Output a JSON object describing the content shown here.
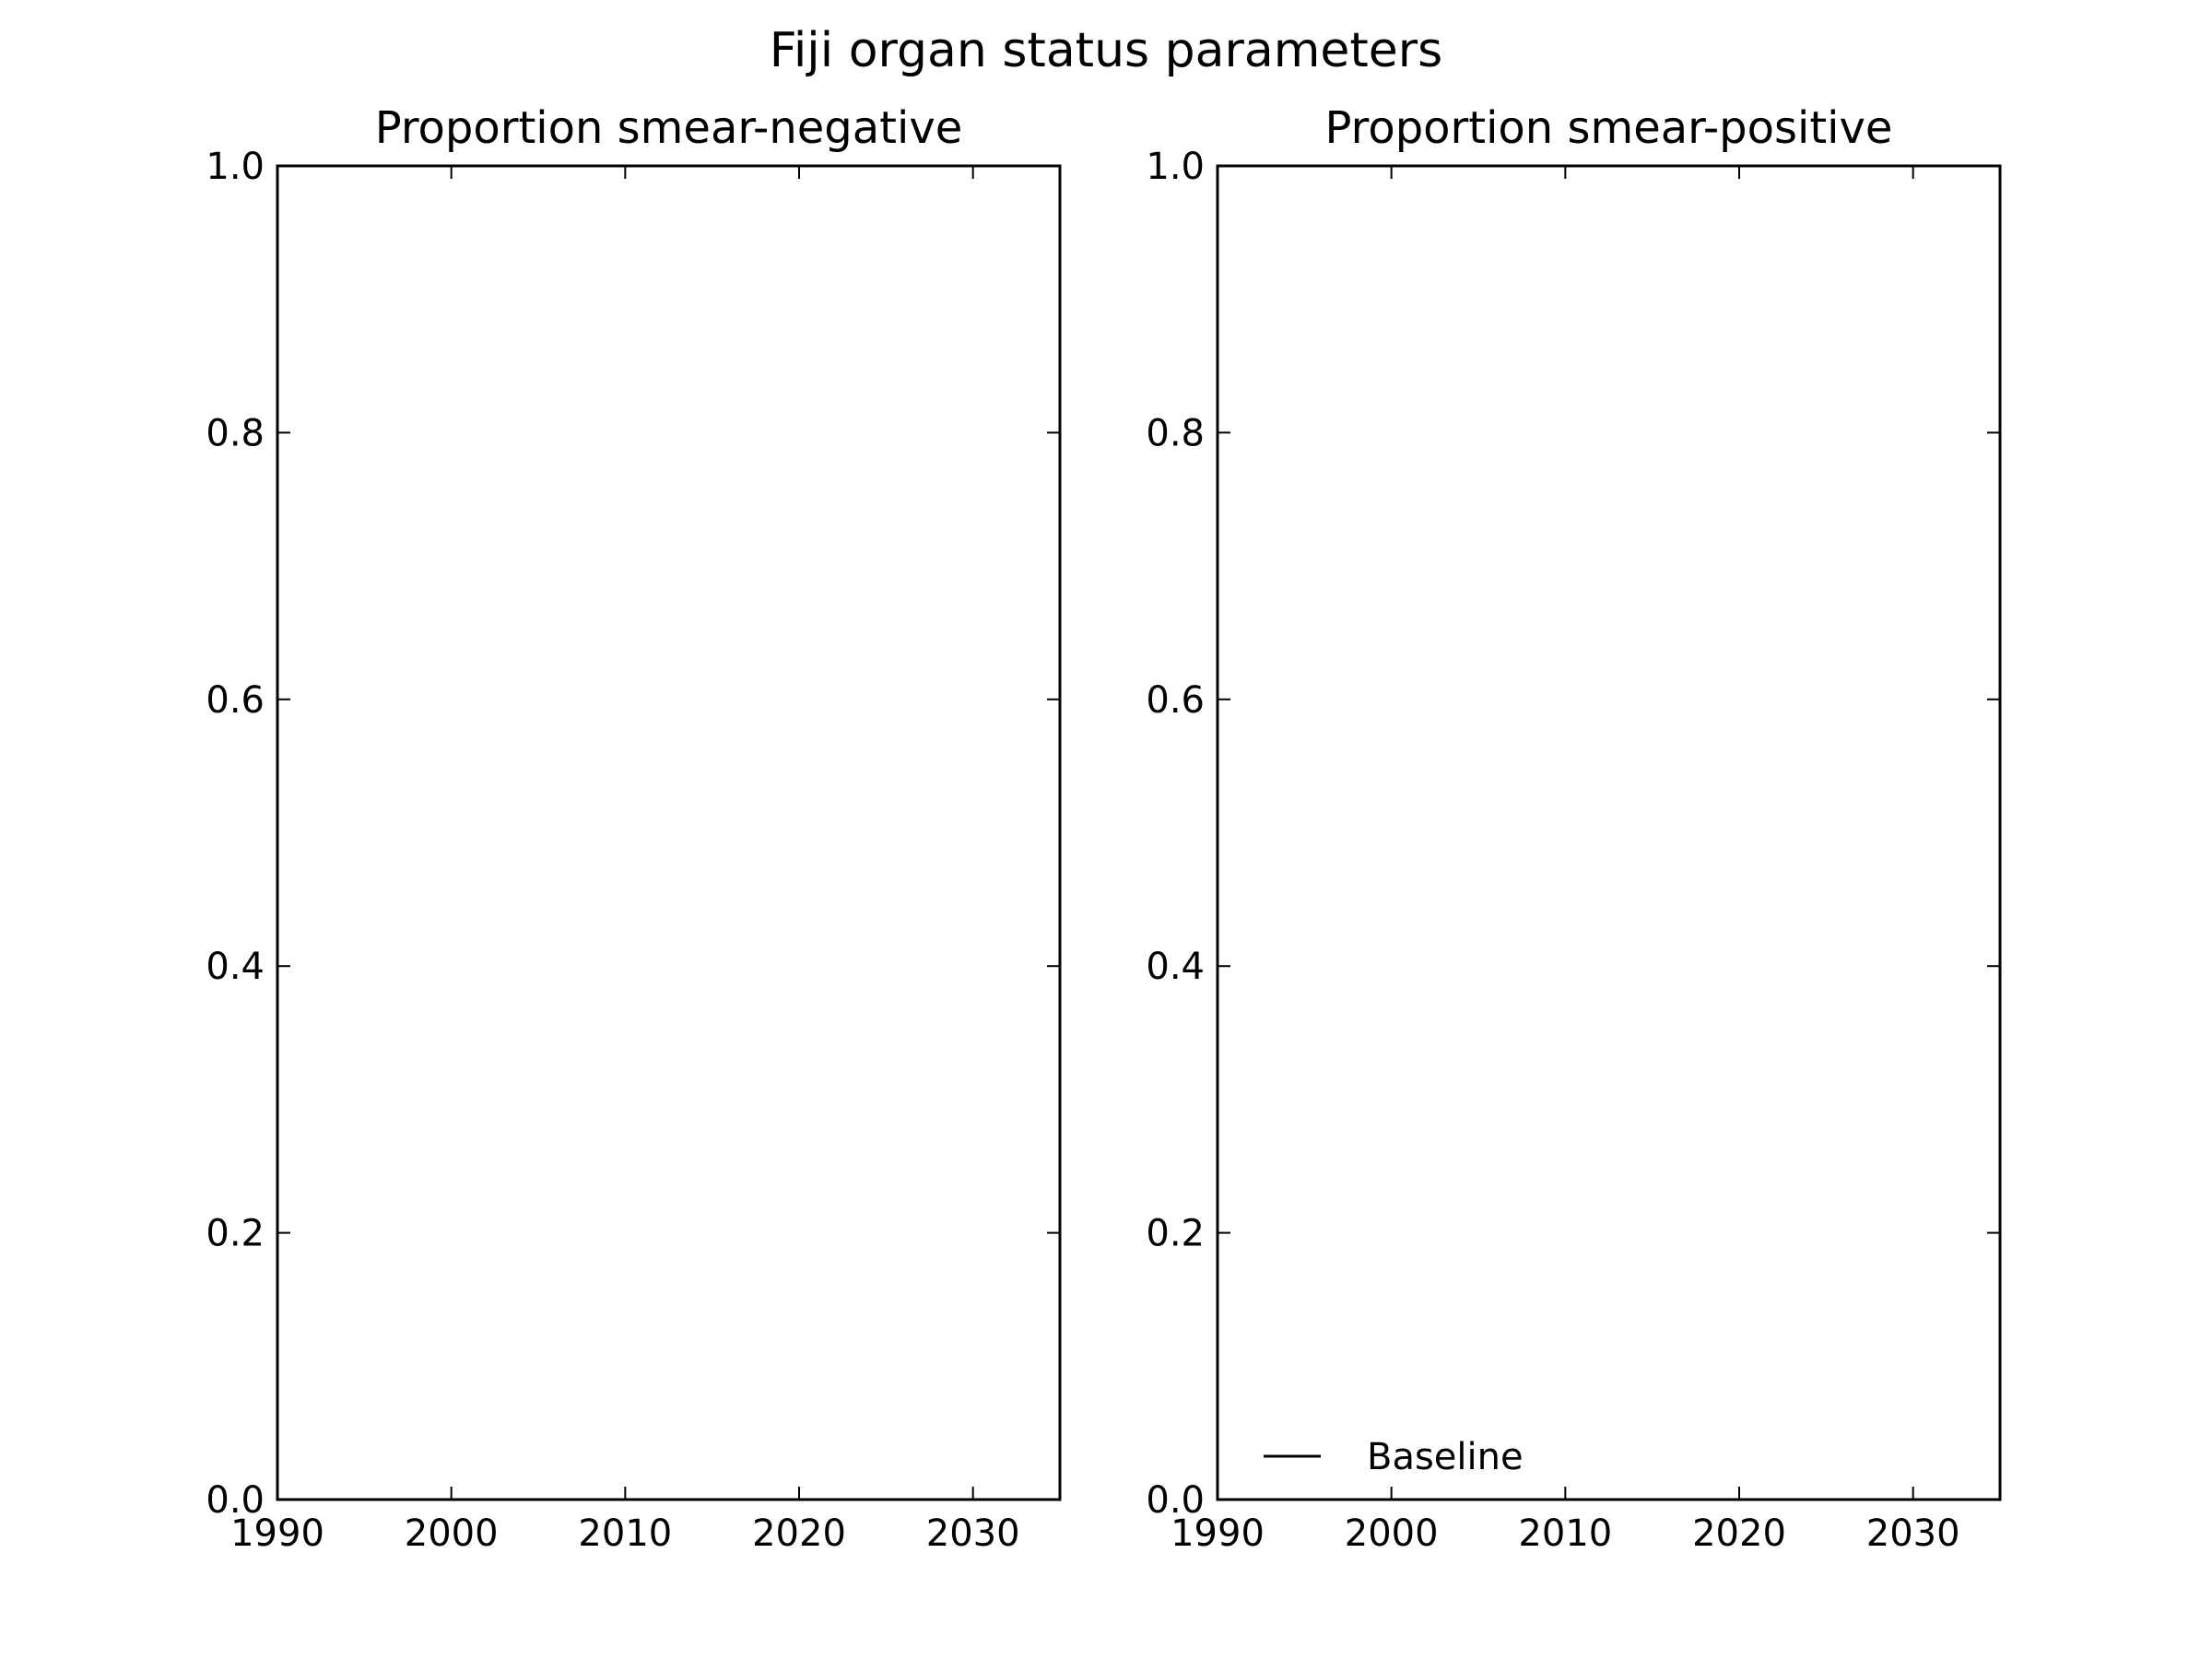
{
  "figure": {
    "title": "Fiji organ status parameters"
  },
  "chart_data": [
    {
      "type": "line",
      "title": "Proportion smear-negative",
      "xlabel": "",
      "ylabel": "",
      "xlim": [
        1990,
        2035
      ],
      "ylim": [
        0.0,
        1.0
      ],
      "x_ticks": [
        1990,
        2000,
        2010,
        2020,
        2030
      ],
      "y_ticks": [
        0.0,
        0.2,
        0.4,
        0.6,
        0.8,
        1.0
      ],
      "x_tick_labels": [
        "1990",
        "2000",
        "2010",
        "2020",
        "2030"
      ],
      "y_tick_labels": [
        "0.0",
        "0.2",
        "0.4",
        "0.6",
        "0.8",
        "1.0"
      ],
      "grid": false,
      "legend": null,
      "series": []
    },
    {
      "type": "line",
      "title": "Proportion smear-positive",
      "xlabel": "",
      "ylabel": "",
      "xlim": [
        1990,
        2035
      ],
      "ylim": [
        0.0,
        1.0
      ],
      "x_ticks": [
        1990,
        2000,
        2010,
        2020,
        2030
      ],
      "y_ticks": [
        0.0,
        0.2,
        0.4,
        0.6,
        0.8,
        1.0
      ],
      "x_tick_labels": [
        "1990",
        "2000",
        "2010",
        "2020",
        "2030"
      ],
      "y_tick_labels": [
        "0.0",
        "0.2",
        "0.4",
        "0.6",
        "0.8",
        "1.0"
      ],
      "grid": false,
      "legend": {
        "location": "lower-left",
        "entries": [
          {
            "label": "Baseline",
            "color": "#000000"
          }
        ]
      },
      "series": [
        {
          "name": "Baseline",
          "color": "#000000",
          "x": [],
          "y": []
        }
      ]
    }
  ]
}
